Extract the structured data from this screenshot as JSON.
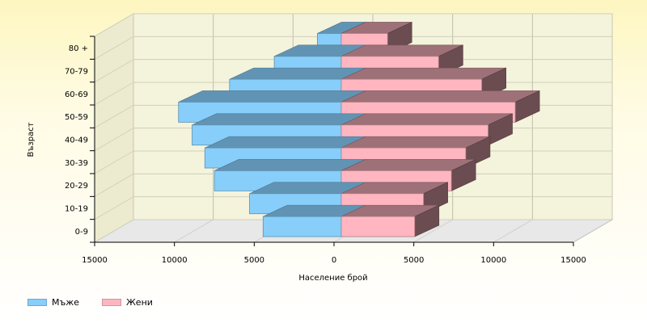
{
  "chart_data": {
    "type": "bar",
    "orientation": "horizontal",
    "style": "3d-population-pyramid",
    "categories": [
      "0-9",
      "10-19",
      "20-29",
      "30-39",
      "40-49",
      "50-59",
      "60-69",
      "70-79",
      "80 +"
    ],
    "series": [
      {
        "name": "Мъже",
        "color": "#87cefa",
        "values": [
          4900,
          5750,
          7950,
          8550,
          9350,
          10200,
          7000,
          4200,
          1500
        ]
      },
      {
        "name": "Жени",
        "color": "#ffb6c1",
        "values": [
          4600,
          5150,
          6900,
          7800,
          9200,
          10900,
          8800,
          6100,
          2900
        ]
      }
    ],
    "x_ticks": [
      "15000",
      "10000",
      "5000",
      "0",
      "5000",
      "10000",
      "15000"
    ],
    "xlabel": "Население брой",
    "ylabel": "Възраст",
    "xlim": [
      -15000,
      15000
    ],
    "grid": true,
    "legend_position": "bottom-left"
  }
}
